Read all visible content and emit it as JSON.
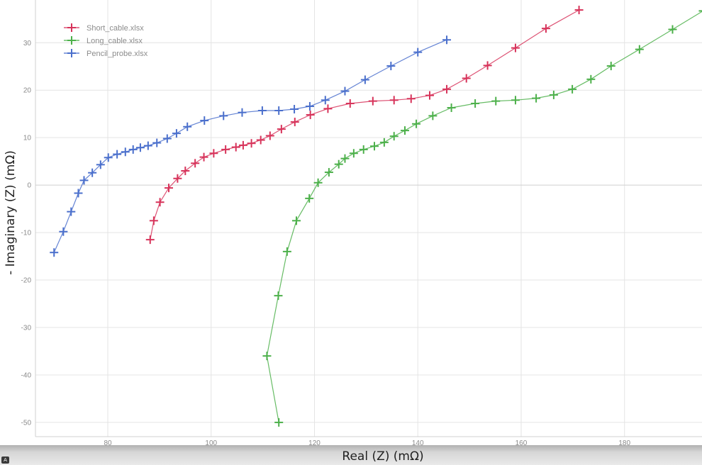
{
  "chart_data": {
    "type": "scatter",
    "title": "",
    "xlabel": "Real (Z) (mΩ)",
    "ylabel": "- Imaginary (Z) (mΩ)",
    "xlim": [
      66,
      195
    ],
    "ylim": [
      -53,
      39
    ],
    "x_ticks": [
      80,
      100,
      120,
      140,
      160,
      180
    ],
    "y_ticks": [
      -50,
      -40,
      -30,
      -20,
      -10,
      0,
      10,
      20,
      30
    ],
    "grid": true,
    "legend_position": "top-left",
    "series": [
      {
        "name": "Short_cable.xlsx",
        "color": "#d7335a",
        "marker": "plus",
        "points": [
          [
            88.2,
            -11.5
          ],
          [
            88.9,
            -7.5
          ],
          [
            90.1,
            -3.6
          ],
          [
            91.8,
            -0.6
          ],
          [
            93.5,
            1.4
          ],
          [
            95.0,
            3.0
          ],
          [
            96.9,
            4.6
          ],
          [
            98.6,
            5.9
          ],
          [
            100.5,
            6.7
          ],
          [
            102.8,
            7.5
          ],
          [
            104.8,
            8.0
          ],
          [
            106.2,
            8.4
          ],
          [
            107.8,
            8.8
          ],
          [
            109.6,
            9.5
          ],
          [
            111.4,
            10.4
          ],
          [
            113.6,
            11.8
          ],
          [
            116.2,
            13.3
          ],
          [
            119.2,
            14.8
          ],
          [
            122.6,
            16.1
          ],
          [
            126.9,
            17.2
          ],
          [
            131.3,
            17.7
          ],
          [
            135.4,
            17.9
          ],
          [
            138.7,
            18.2
          ],
          [
            142.3,
            18.9
          ],
          [
            145.6,
            20.2
          ],
          [
            149.4,
            22.5
          ],
          [
            153.5,
            25.2
          ],
          [
            158.9,
            28.9
          ],
          [
            164.8,
            33.0
          ],
          [
            171.2,
            36.9
          ]
        ]
      },
      {
        "name": "Long_cable.xlsx",
        "color": "#4cb04a",
        "marker": "plus",
        "points": [
          [
            113.1,
            -50.0
          ],
          [
            110.8,
            -36.0
          ],
          [
            113.0,
            -23.3
          ],
          [
            114.7,
            -14.0
          ],
          [
            116.5,
            -7.5
          ],
          [
            119.0,
            -2.8
          ],
          [
            120.7,
            0.5
          ],
          [
            122.8,
            2.7
          ],
          [
            124.7,
            4.4
          ],
          [
            125.9,
            5.6
          ],
          [
            127.6,
            6.7
          ],
          [
            129.5,
            7.5
          ],
          [
            131.6,
            8.2
          ],
          [
            133.5,
            9.0
          ],
          [
            135.4,
            10.3
          ],
          [
            137.5,
            11.5
          ],
          [
            139.7,
            12.9
          ],
          [
            142.9,
            14.6
          ],
          [
            146.5,
            16.3
          ],
          [
            151.1,
            17.2
          ],
          [
            155.1,
            17.7
          ],
          [
            158.9,
            17.9
          ],
          [
            162.9,
            18.3
          ],
          [
            166.3,
            19.0
          ],
          [
            169.9,
            20.2
          ],
          [
            173.5,
            22.3
          ],
          [
            177.4,
            25.1
          ],
          [
            182.9,
            28.6
          ],
          [
            189.3,
            32.8
          ],
          [
            195.2,
            36.7
          ]
        ]
      },
      {
        "name": "Pencil_probe.xlsx",
        "color": "#4a6fcc",
        "marker": "plus",
        "points": [
          [
            69.6,
            -14.2
          ],
          [
            71.4,
            -9.8
          ],
          [
            72.9,
            -5.6
          ],
          [
            74.3,
            -1.7
          ],
          [
            75.4,
            1.0
          ],
          [
            77.0,
            2.6
          ],
          [
            78.6,
            4.3
          ],
          [
            80.1,
            5.8
          ],
          [
            81.8,
            6.5
          ],
          [
            83.4,
            7.0
          ],
          [
            84.9,
            7.5
          ],
          [
            86.3,
            7.9
          ],
          [
            87.8,
            8.3
          ],
          [
            89.5,
            8.9
          ],
          [
            91.5,
            9.8
          ],
          [
            93.3,
            10.9
          ],
          [
            95.4,
            12.3
          ],
          [
            98.7,
            13.6
          ],
          [
            102.4,
            14.6
          ],
          [
            106.0,
            15.3
          ],
          [
            109.9,
            15.7
          ],
          [
            113.1,
            15.7
          ],
          [
            116.1,
            16.0
          ],
          [
            119.1,
            16.6
          ],
          [
            122.1,
            17.9
          ],
          [
            125.9,
            19.8
          ],
          [
            129.8,
            22.2
          ],
          [
            134.8,
            25.1
          ],
          [
            140.0,
            28.0
          ],
          [
            145.6,
            30.6
          ]
        ]
      }
    ]
  }
}
